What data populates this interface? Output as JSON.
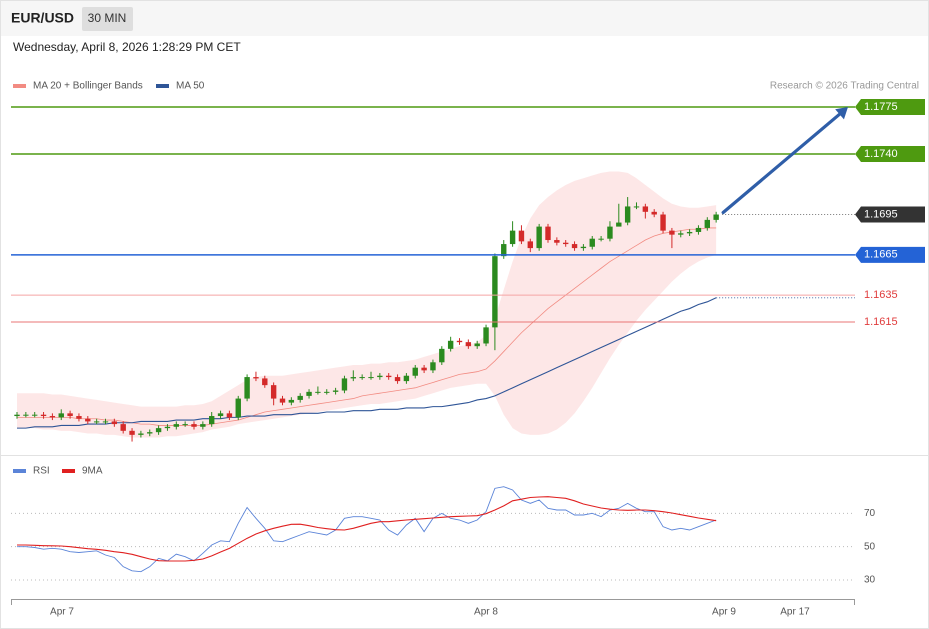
{
  "header": {
    "symbol": "EUR/USD",
    "timeframe": "30 MIN",
    "timestamp": "Wednesday, April 8, 2026 1:28:29 PM CET",
    "credit": "Research © 2026 Trading Central"
  },
  "chart_data": [
    {
      "type": "candlestick",
      "up_color": "#2b8a1f",
      "down_color": "#d42a2a",
      "ylim": [
        1.1516,
        1.181
      ],
      "open": [
        1.1545,
        1.1546,
        1.1546,
        1.1546,
        1.1545,
        1.1544,
        1.1547,
        1.1545,
        1.1543,
        1.1541,
        1.1541,
        1.1541,
        1.1539,
        1.1534,
        1.1531,
        1.1532,
        1.1533,
        1.1536,
        1.1537,
        1.1539,
        1.1539,
        1.1537,
        1.1539,
        1.1545,
        1.1547,
        1.1544,
        1.1558,
        1.1574,
        1.1573,
        1.1568,
        1.1558,
        1.1555,
        1.1557,
        1.156,
        1.1563,
        1.1563,
        1.1563,
        1.1564,
        1.1573,
        1.1574,
        1.1574,
        1.1574,
        1.1575,
        1.1574,
        1.1571,
        1.1575,
        1.1581,
        1.1579,
        1.1585,
        1.1595,
        1.1601,
        1.16,
        1.1597,
        1.1599,
        1.1611,
        1.1664,
        1.1673,
        1.1683,
        1.1675,
        1.167,
        1.1686,
        1.1676,
        1.1674,
        1.1673,
        1.167,
        1.1671,
        1.1677,
        1.1677,
        1.1686,
        1.1689,
        1.1701,
        1.1701,
        1.1697,
        1.1695,
        1.1683,
        1.168,
        1.1681,
        1.1682,
        1.1685,
        1.1691
      ],
      "high": [
        1.1548,
        1.1548,
        1.1548,
        1.1548,
        1.1547,
        1.155,
        1.1549,
        1.1547,
        1.1545,
        1.1543,
        1.1543,
        1.1543,
        1.1541,
        1.1536,
        1.1534,
        1.1535,
        1.1538,
        1.1539,
        1.1541,
        1.1541,
        1.1541,
        1.1541,
        1.1548,
        1.1549,
        1.1549,
        1.156,
        1.1576,
        1.1578,
        1.1575,
        1.157,
        1.156,
        1.1559,
        1.1562,
        1.1565,
        1.1567,
        1.1565,
        1.1566,
        1.1575,
        1.1579,
        1.1576,
        1.1578,
        1.1577,
        1.1577,
        1.1576,
        1.1577,
        1.1583,
        1.1583,
        1.1587,
        1.1597,
        1.1604,
        1.1603,
        1.1602,
        1.1601,
        1.1613,
        1.1666,
        1.1676,
        1.169,
        1.1687,
        1.1677,
        1.1688,
        1.1688,
        1.1678,
        1.1676,
        1.1675,
        1.1673,
        1.1679,
        1.1679,
        1.169,
        1.1703,
        1.1708,
        1.1704,
        1.1703,
        1.1699,
        1.1697,
        1.1685,
        1.1683,
        1.1684,
        1.1687,
        1.1693,
        1.1697
      ],
      "low": [
        1.1543,
        1.1544,
        1.1544,
        1.1543,
        1.1542,
        1.1542,
        1.1543,
        1.1541,
        1.1539,
        1.1539,
        1.1539,
        1.1537,
        1.1532,
        1.1526,
        1.1529,
        1.153,
        1.1531,
        1.1534,
        1.1535,
        1.1537,
        1.1535,
        1.1535,
        1.1537,
        1.1543,
        1.1542,
        1.1542,
        1.1556,
        1.1571,
        1.1566,
        1.1553,
        1.1553,
        1.1553,
        1.1555,
        1.1558,
        1.1561,
        1.1561,
        1.1561,
        1.1562,
        1.1571,
        1.1572,
        1.1572,
        1.1572,
        1.1572,
        1.1569,
        1.1569,
        1.1573,
        1.1577,
        1.1577,
        1.1583,
        1.1593,
        1.1598,
        1.1595,
        1.1595,
        1.1597,
        1.1594,
        1.1662,
        1.1671,
        1.1673,
        1.1667,
        1.1668,
        1.1674,
        1.1672,
        1.1671,
        1.1668,
        1.1668,
        1.1669,
        1.1675,
        1.1675,
        1.1687,
        1.1687,
        1.1699,
        1.1692,
        1.1693,
        1.1681,
        1.167,
        1.1678,
        1.1679,
        1.168,
        1.1683,
        1.1689
      ],
      "close": [
        1.1546,
        1.1546,
        1.1546,
        1.1545,
        1.1544,
        1.1547,
        1.1545,
        1.1543,
        1.1541,
        1.1541,
        1.1541,
        1.1539,
        1.1534,
        1.1531,
        1.1532,
        1.1533,
        1.1536,
        1.1537,
        1.1539,
        1.1539,
        1.1537,
        1.1539,
        1.1545,
        1.1547,
        1.1544,
        1.1558,
        1.1574,
        1.1573,
        1.1568,
        1.1558,
        1.1555,
        1.1557,
        1.156,
        1.1563,
        1.1563,
        1.1563,
        1.1564,
        1.1573,
        1.1574,
        1.1574,
        1.1574,
        1.1575,
        1.1574,
        1.1571,
        1.1575,
        1.1581,
        1.1579,
        1.1585,
        1.1595,
        1.1601,
        1.16,
        1.1597,
        1.1599,
        1.1611,
        1.1664,
        1.1673,
        1.1683,
        1.1675,
        1.167,
        1.1686,
        1.1676,
        1.1674,
        1.1673,
        1.167,
        1.1671,
        1.1677,
        1.1677,
        1.1686,
        1.1689,
        1.1701,
        1.1701,
        1.1697,
        1.1695,
        1.1683,
        1.168,
        1.1681,
        1.1682,
        1.1685,
        1.1691,
        1.1695
      ],
      "overlays": [
        {
          "name": "MA 20 + Bollinger Bands",
          "color": "#f28b82",
          "band_color": "#fde3e3",
          "values": [
            1.1544,
            1.1544,
            1.1544,
            1.1544,
            1.1544,
            1.1544,
            1.1544,
            1.1543,
            1.1543,
            1.1543,
            1.1542,
            1.1542,
            1.1541,
            1.154,
            1.1539,
            1.1539,
            1.1538,
            1.1538,
            1.1538,
            1.1538,
            1.1538,
            1.1538,
            1.1539,
            1.154,
            1.1541,
            1.1542,
            1.1544,
            1.1546,
            1.1548,
            1.1549,
            1.155,
            1.1551,
            1.1552,
            1.1553,
            1.1554,
            1.1555,
            1.1556,
            1.1557,
            1.1558,
            1.156,
            1.1561,
            1.1562,
            1.1563,
            1.1564,
            1.1565,
            1.1566,
            1.1568,
            1.157,
            1.1572,
            1.1574,
            1.1576,
            1.1577,
            1.1578,
            1.158,
            1.1586,
            1.1593,
            1.16,
            1.1607,
            1.1613,
            1.1619,
            1.1625,
            1.163,
            1.1635,
            1.164,
            1.1645,
            1.165,
            1.1655,
            1.166,
            1.1664,
            1.1668,
            1.1672,
            1.1676,
            1.1679,
            1.1681,
            1.1682,
            1.1683,
            1.1684,
            1.1684,
            1.1685,
            1.1685
          ],
          "upper": [
            1.1562,
            1.1562,
            1.1562,
            1.1562,
            1.1561,
            1.1561,
            1.156,
            1.1559,
            1.1558,
            1.1557,
            1.1556,
            1.1555,
            1.1554,
            1.1553,
            1.1552,
            1.1552,
            1.1552,
            1.1552,
            1.1552,
            1.1553,
            1.1553,
            1.1554,
            1.1556,
            1.156,
            1.1564,
            1.1568,
            1.1572,
            1.1574,
            1.1575,
            1.1575,
            1.1575,
            1.1576,
            1.1577,
            1.1578,
            1.1579,
            1.158,
            1.1581,
            1.1582,
            1.1583,
            1.1583,
            1.1584,
            1.1584,
            1.1585,
            1.1585,
            1.1586,
            1.1587,
            1.1589,
            1.1591,
            1.1593,
            1.1595,
            1.1597,
            1.1598,
            1.16,
            1.1605,
            1.1618,
            1.1639,
            1.166,
            1.1678,
            1.1692,
            1.1702,
            1.1708,
            1.1713,
            1.1717,
            1.172,
            1.1722,
            1.1724,
            1.1726,
            1.1727,
            1.1727,
            1.1726,
            1.1722,
            1.1717,
            1.1712,
            1.1707,
            1.1703,
            1.1701,
            1.17,
            1.17,
            1.1701,
            1.1702
          ],
          "lower": [
            1.1536,
            1.1536,
            1.1536,
            1.1535,
            1.1535,
            1.1534,
            1.1534,
            1.1533,
            1.1532,
            1.1532,
            1.1531,
            1.1531,
            1.153,
            1.1529,
            1.1529,
            1.1529,
            1.1529,
            1.153,
            1.153,
            1.1531,
            1.1532,
            1.1533,
            1.1535,
            1.1536,
            1.1537,
            1.1539,
            1.154,
            1.1541,
            1.1542,
            1.1543,
            1.1544,
            1.1545,
            1.1546,
            1.1547,
            1.1548,
            1.1549,
            1.155,
            1.1551,
            1.1552,
            1.1553,
            1.1554,
            1.1554,
            1.1555,
            1.1556,
            1.1557,
            1.1558,
            1.156,
            1.1562,
            1.1564,
            1.1566,
            1.1567,
            1.1568,
            1.1569,
            1.1569,
            1.156,
            1.1546,
            1.1536,
            1.1532,
            1.1531,
            1.1531,
            1.1532,
            1.1535,
            1.154,
            1.1547,
            1.1556,
            1.1566,
            1.1577,
            1.1588,
            1.1598,
            1.1607,
            1.1616,
            1.1624,
            1.1631,
            1.1638,
            1.1645,
            1.1651,
            1.1656,
            1.166,
            1.1663,
            1.1665
          ]
        },
        {
          "name": "MA 50",
          "color": "#2f5597",
          "values": [
            1.1536,
            1.1536,
            1.1537,
            1.1537,
            1.1537,
            1.1538,
            1.1538,
            1.1538,
            1.1539,
            1.1539,
            1.1539,
            1.154,
            1.154,
            1.154,
            1.1541,
            1.1541,
            1.1541,
            1.1541,
            1.1542,
            1.1542,
            1.1542,
            1.1543,
            1.1543,
            1.1543,
            1.1544,
            1.1544,
            1.1545,
            1.1545,
            1.1545,
            1.1546,
            1.1546,
            1.1546,
            1.1547,
            1.1547,
            1.1547,
            1.1548,
            1.1548,
            1.1548,
            1.1549,
            1.1549,
            1.1549,
            1.155,
            1.155,
            1.155,
            1.1551,
            1.1551,
            1.1551,
            1.1552,
            1.1552,
            1.1553,
            1.1554,
            1.1555,
            1.1557,
            1.1558,
            1.156,
            1.1563,
            1.1566,
            1.1569,
            1.1572,
            1.1575,
            1.1578,
            1.1581,
            1.1584,
            1.1587,
            1.159,
            1.1593,
            1.1596,
            1.1599,
            1.1602,
            1.1605,
            1.1608,
            1.1611,
            1.1614,
            1.1617,
            1.162,
            1.1623,
            1.1625,
            1.1628,
            1.163,
            1.1633
          ]
        }
      ],
      "levels": [
        {
          "value": 1.1775,
          "color": "#4e9a10",
          "tag": true,
          "line": "solid"
        },
        {
          "value": 1.174,
          "label": "1.1740",
          "color": "#4e9a10",
          "tag": true,
          "line": "solid"
        },
        {
          "value": 1.1695,
          "color": "#333333",
          "tag": true,
          "line": "dotted"
        },
        {
          "value": 1.1665,
          "color": "#2463d6",
          "tag": true,
          "line": "solid"
        },
        {
          "value": 1.1635,
          "color": "#e03c3c",
          "line_color": "#f5a5a5",
          "tag": false,
          "line": "solid"
        },
        {
          "value": 1.1615,
          "color": "#e03c3c",
          "line_color": "#e97575",
          "tag": false,
          "line": "solid"
        }
      ],
      "arrow_color": "#2f5ea8"
    },
    {
      "type": "line",
      "ylim": [
        18,
        102
      ],
      "yticks": [
        70,
        50,
        30
      ],
      "grid": true,
      "xtick_labels": [
        "Apr 7",
        "Apr 8",
        "Apr 9",
        "Apr 17"
      ],
      "series": [
        {
          "name": "RSI",
          "color": "#5b84d8",
          "values": [
            50,
            50,
            49.5,
            48.5,
            49,
            48.5,
            47,
            46.5,
            47,
            47.5,
            45,
            43.5,
            38,
            35.5,
            35,
            38,
            43,
            41.5,
            45.5,
            44,
            41.5,
            46,
            51,
            53.5,
            53,
            64,
            73.5,
            67,
            61,
            53.5,
            53,
            55,
            57,
            59,
            58,
            57,
            60,
            67,
            68,
            68,
            67,
            66,
            60,
            57,
            63,
            67,
            59,
            67,
            70,
            67,
            66,
            64,
            66,
            71,
            85,
            86,
            84,
            78,
            76,
            78,
            73,
            72,
            72,
            69,
            69,
            70,
            68,
            72,
            73,
            76,
            73,
            71,
            71,
            62,
            60,
            61,
            60,
            62,
            64,
            66
          ]
        },
        {
          "name": "9MA",
          "color": "#e02020",
          "values": [
            51,
            51,
            50.8,
            50.6,
            50.5,
            50.4,
            50,
            49.4,
            48.8,
            48.4,
            47.8,
            47,
            46.4,
            45.4,
            44,
            42.6,
            41.6,
            41.4,
            41.4,
            41.4,
            41.8,
            42.6,
            44.5,
            46.8,
            49,
            52,
            55,
            57.6,
            59.5,
            61,
            62.3,
            63.4,
            63.5,
            62.6,
            61.5,
            60.8,
            60.2,
            60,
            61,
            62.5,
            64,
            65,
            65,
            65.5,
            66,
            66.4,
            66.8,
            67.2,
            67.6,
            68,
            68.2,
            68.4,
            68.6,
            69.8,
            72,
            74.5,
            77.5,
            78.5,
            79.5,
            79.8,
            80,
            79.5,
            79,
            77.5,
            75.6,
            74.4,
            73.2,
            72.5,
            72,
            71.8,
            72,
            72,
            71.6,
            71,
            70.2,
            69.2,
            68.2,
            67.2,
            66.4,
            65.6
          ]
        }
      ]
    }
  ]
}
